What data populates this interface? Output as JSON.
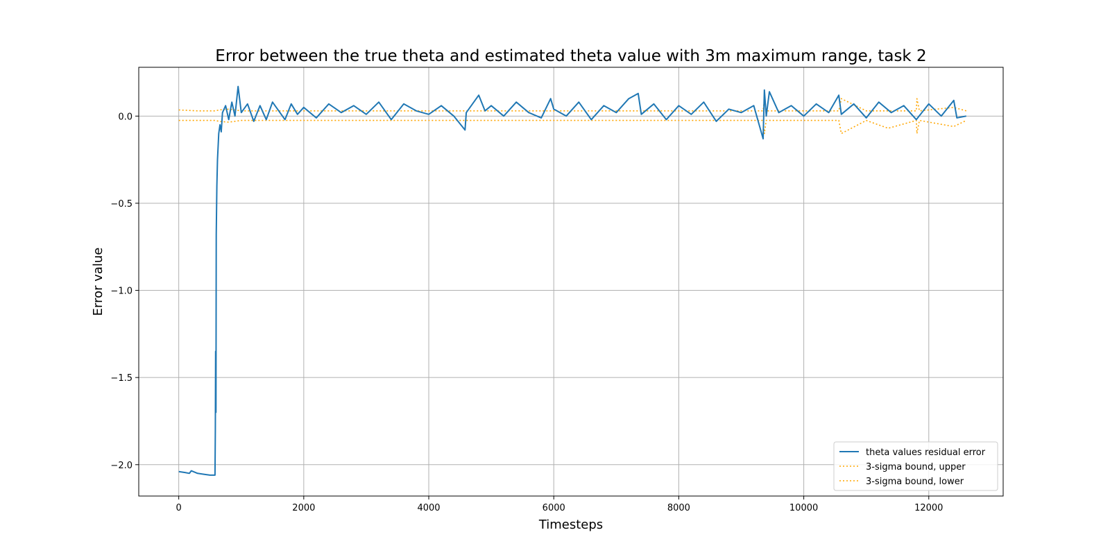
{
  "chart_data": {
    "type": "line",
    "title": "Error between the true theta and estimated theta value with 3m maximum range, task 2",
    "xlabel": "Timesteps",
    "ylabel": "Error value",
    "xlim": [
      -640,
      13190
    ],
    "ylim": [
      -2.18,
      0.28
    ],
    "xticks": [
      0,
      2000,
      4000,
      6000,
      8000,
      10000,
      12000
    ],
    "xtick_labels": [
      "0",
      "2000",
      "4000",
      "6000",
      "8000",
      "10000",
      "12000"
    ],
    "yticks": [
      0.0,
      -0.5,
      -1.0,
      -1.5,
      -2.0
    ],
    "ytick_labels": [
      "0.0",
      "−0.5",
      "−1.0",
      "−1.5",
      "−2.0"
    ],
    "grid": true,
    "legend_position": "lower-right",
    "colors": {
      "error": "#1f77b4",
      "bound": "#ffa500"
    },
    "series": [
      {
        "name": "theta values residual error",
        "style": "solid",
        "x": [
          0,
          100,
          170,
          200,
          300,
          400,
          500,
          560,
          580,
          585,
          590,
          595,
          600,
          610,
          620,
          640,
          660,
          680,
          700,
          750,
          800,
          850,
          900,
          950,
          1000,
          1100,
          1200,
          1300,
          1400,
          1500,
          1600,
          1700,
          1800,
          1900,
          2000,
          2200,
          2400,
          2600,
          2800,
          3000,
          3200,
          3400,
          3600,
          3800,
          4000,
          4200,
          4400,
          4580,
          4600,
          4800,
          4900,
          5000,
          5200,
          5400,
          5600,
          5800,
          5950,
          6000,
          6200,
          6400,
          6600,
          6800,
          7000,
          7200,
          7350,
          7400,
          7600,
          7800,
          8000,
          8200,
          8400,
          8600,
          8800,
          9000,
          9200,
          9350,
          9370,
          9400,
          9450,
          9600,
          9800,
          10000,
          10200,
          10400,
          10560,
          10600,
          10800,
          11000,
          11200,
          11400,
          11600,
          11800,
          12000,
          12200,
          12400,
          12450,
          12600
        ],
        "y": [
          -2.04,
          -2.045,
          -2.05,
          -2.035,
          -2.05,
          -2.055,
          -2.06,
          -2.06,
          -2.06,
          -1.8,
          -1.35,
          -1.7,
          -0.68,
          -0.4,
          -0.25,
          -0.1,
          -0.05,
          -0.09,
          0.02,
          0.06,
          -0.02,
          0.08,
          0.0,
          0.17,
          0.02,
          0.07,
          -0.03,
          0.06,
          -0.02,
          0.08,
          0.03,
          -0.02,
          0.07,
          0.01,
          0.05,
          -0.01,
          0.07,
          0.02,
          0.06,
          0.01,
          0.08,
          -0.02,
          0.07,
          0.03,
          0.01,
          0.06,
          0.0,
          -0.08,
          0.02,
          0.12,
          0.03,
          0.06,
          0.0,
          0.08,
          0.02,
          -0.01,
          0.1,
          0.04,
          0.0,
          0.08,
          -0.02,
          0.06,
          0.02,
          0.1,
          0.13,
          0.01,
          0.07,
          -0.02,
          0.06,
          0.01,
          0.08,
          -0.03,
          0.04,
          0.02,
          0.06,
          -0.13,
          0.15,
          0.0,
          0.14,
          0.02,
          0.06,
          0.0,
          0.07,
          0.02,
          0.12,
          0.01,
          0.07,
          -0.01,
          0.08,
          0.02,
          0.06,
          -0.02,
          0.07,
          0.0,
          0.09,
          -0.01,
          0.0
        ]
      },
      {
        "name": "3-sigma bound, upper",
        "style": "dotted",
        "x": [
          0,
          300,
          580,
          650,
          800,
          1000,
          2000,
          3000,
          4000,
          5000,
          6000,
          7000,
          8000,
          9000,
          9350,
          9370,
          9400,
          10000,
          10560,
          10600,
          11000,
          11800,
          11810,
          11850,
          12400,
          12600
        ],
        "y": [
          0.035,
          0.03,
          0.03,
          0.035,
          0.04,
          0.03,
          0.03,
          0.03,
          0.03,
          0.03,
          0.03,
          0.03,
          0.03,
          0.03,
          0.03,
          0.1,
          0.03,
          0.03,
          0.03,
          0.1,
          0.03,
          0.03,
          0.1,
          0.03,
          0.05,
          0.03
        ]
      },
      {
        "name": "3-sigma bound, lower",
        "style": "dotted",
        "x": [
          0,
          300,
          580,
          650,
          800,
          1000,
          2000,
          3000,
          4000,
          5000,
          6000,
          7000,
          8000,
          9000,
          9350,
          9370,
          9400,
          10000,
          10560,
          10600,
          11000,
          11350,
          11800,
          11810,
          11850,
          12400,
          12600
        ],
        "y": [
          -0.025,
          -0.025,
          -0.025,
          -0.03,
          -0.035,
          -0.025,
          -0.025,
          -0.025,
          -0.025,
          -0.025,
          -0.025,
          -0.025,
          -0.025,
          -0.025,
          -0.025,
          -0.1,
          -0.025,
          -0.025,
          -0.025,
          -0.1,
          -0.025,
          -0.07,
          -0.025,
          -0.1,
          -0.025,
          -0.06,
          -0.025
        ]
      }
    ]
  }
}
